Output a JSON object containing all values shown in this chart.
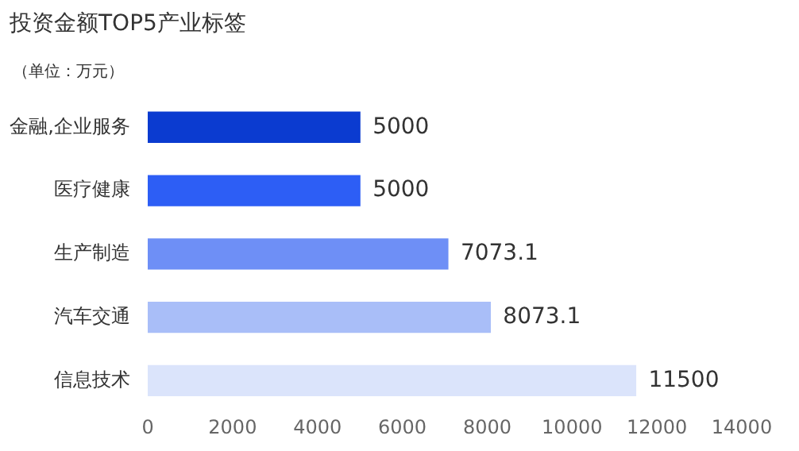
{
  "chart_data": {
    "type": "bar",
    "orientation": "horizontal",
    "title": "投资金额TOP5产业标签",
    "ylabel": "（单位：万元）",
    "categories": [
      "金融,企业服务",
      "医疗健康",
      "生产制造",
      "汽车交通",
      "信息技术"
    ],
    "values": [
      5000,
      5000,
      7073.1,
      8073.1,
      11500
    ],
    "colors": [
      "#0b3bd0",
      "#2d5ef5",
      "#6e8ff6",
      "#a9bef8",
      "#dbe4fb"
    ],
    "xlim": [
      0,
      14000
    ],
    "xticks": [
      0,
      2000,
      4000,
      6000,
      8000,
      10000,
      12000,
      14000
    ],
    "grid": false,
    "legend": false,
    "data_labels": true
  }
}
